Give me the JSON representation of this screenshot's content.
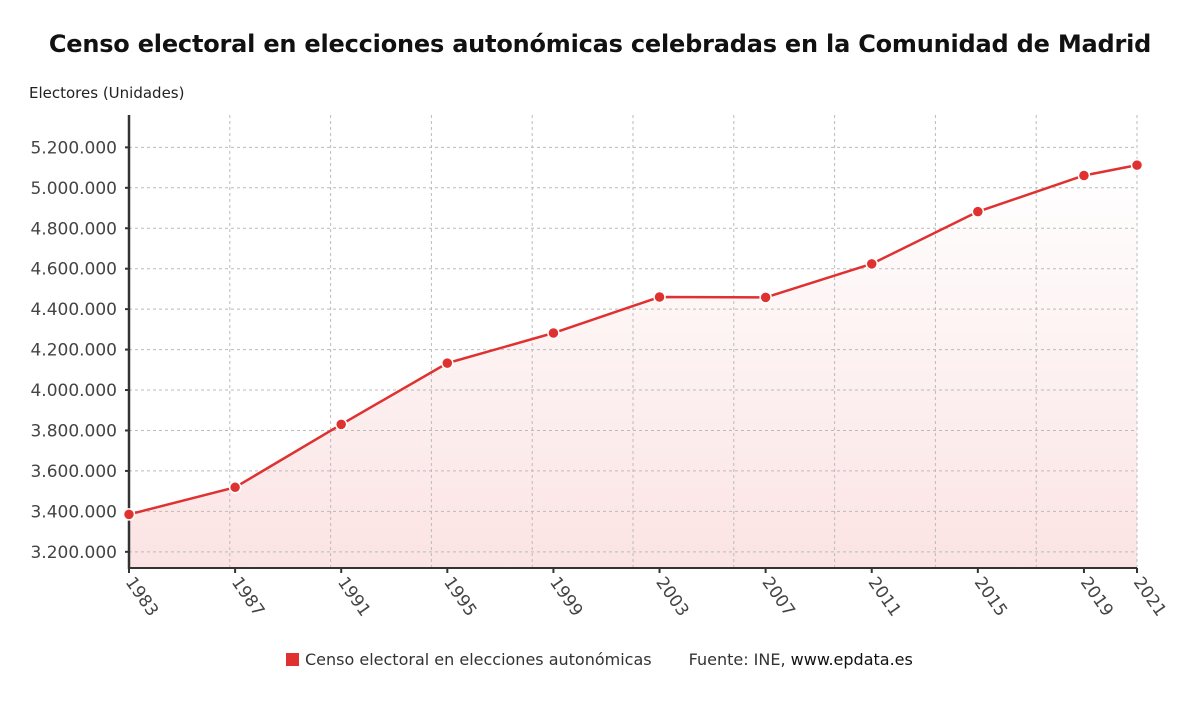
{
  "chart_data": {
    "type": "line",
    "title": "Censo electoral en elecciones autonómicas celebradas en la Comunidad de Madrid",
    "ylabel": "Electores (Unidades)",
    "xlabel": "",
    "x": [
      1983,
      1987,
      1991,
      1995,
      1999,
      2003,
      2007,
      2011,
      2015,
      2019,
      2021
    ],
    "x_tick_labels": [
      "1983",
      "1987",
      "1991",
      "1995",
      "1999",
      "2003",
      "2007",
      "2011",
      "2015",
      "2019",
      "2021"
    ],
    "xlim": [
      1983,
      2021
    ],
    "ylim": [
      3120000,
      5360000
    ],
    "y_ticks": [
      3200000,
      3400000,
      3600000,
      3800000,
      4000000,
      4200000,
      4400000,
      4600000,
      4800000,
      5000000,
      5200000
    ],
    "y_tick_labels": [
      "3.200.000",
      "3.400.000",
      "3.600.000",
      "3.800.000",
      "4.000.000",
      "4.200.000",
      "4.400.000",
      "4.600.000",
      "4.800.000",
      "5.000.000",
      "5.200.000"
    ],
    "grid": true,
    "series": [
      {
        "name": "Censo electoral en elecciones autonómicas",
        "color": "#e03131",
        "fill": "area-gradient",
        "values": [
          3385000,
          3519000,
          3830000,
          4133000,
          4282000,
          4460000,
          4458000,
          4624000,
          4882000,
          5061000,
          5112000
        ]
      }
    ],
    "legend": {
      "position": "bottom",
      "entries": [
        "Censo electoral en elecciones autonómicas"
      ]
    }
  },
  "footer": {
    "source_prefix": "Fuente: INE,",
    "source_link": "www.epdata.es"
  },
  "colors": {
    "line": "#e03131",
    "fill_bottom": "#fbe3e3",
    "fill_top": "#ffffff",
    "grid": "#bbbbbb",
    "axis": "#333333"
  }
}
